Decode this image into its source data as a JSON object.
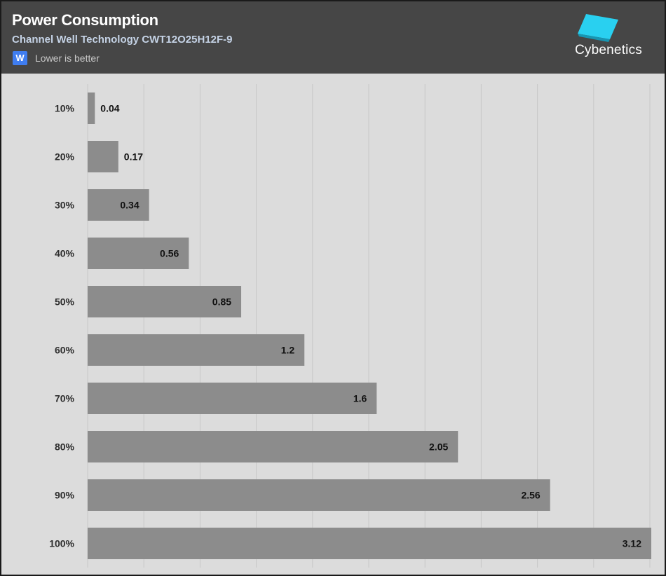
{
  "header": {
    "title": "Power Consumption",
    "subtitle": "Channel Well Technology CWT12O25H12F-9",
    "unit_badge": "W",
    "unit_note": "Lower is better",
    "brand": "Cybenetics"
  },
  "colors": {
    "header_bg": "#464646",
    "plot_bg": "#dcdcdc",
    "bar": "#8c8c8c",
    "grid": "#c8c8c8",
    "badge": "#3f7df0",
    "logo": "#29d0f0"
  },
  "chart_data": {
    "type": "bar",
    "orientation": "horizontal",
    "title": "Power Consumption",
    "subtitle": "Channel Well Technology CWT12O25H12F-9",
    "categories": [
      "10%",
      "20%",
      "30%",
      "40%",
      "50%",
      "60%",
      "70%",
      "80%",
      "90%",
      "100%"
    ],
    "values": [
      0.04,
      0.17,
      0.34,
      0.56,
      0.85,
      1.2,
      1.6,
      2.05,
      2.56,
      3.12
    ],
    "value_labels": [
      "0.04",
      "0.17",
      "0.34",
      "0.56",
      "0.85",
      "1.2",
      "1.6",
      "2.05",
      "2.56",
      "3.12"
    ],
    "xlim": [
      0,
      3.12
    ],
    "grid": true
  }
}
